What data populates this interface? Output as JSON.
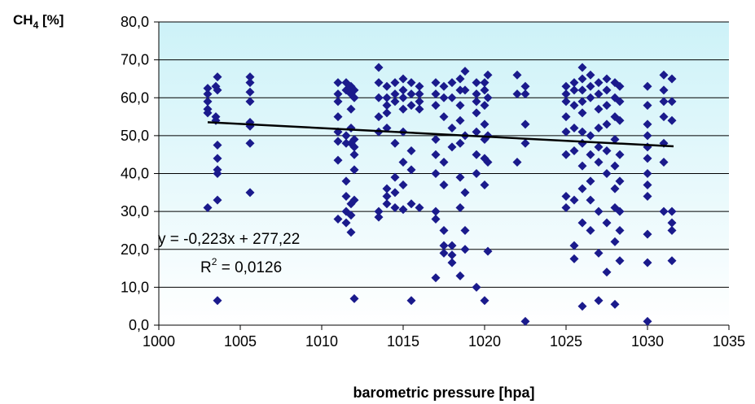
{
  "chart_data": {
    "type": "scatter",
    "ylabel_main": "CH",
    "ylabel_sub": "4",
    "ylabel_rest": " [%]",
    "xlabel": "barometric pressure [hpa]",
    "xlim": [
      1000,
      1035
    ],
    "ylim": [
      0,
      80
    ],
    "x_ticks": [
      1000,
      1005,
      1010,
      1015,
      1020,
      1025,
      1030,
      1035
    ],
    "x_tick_labels": [
      "1000",
      "1005",
      "1010",
      "1015",
      "1020",
      "1025",
      "1030",
      "1035"
    ],
    "y_ticks": [
      0,
      10,
      20,
      30,
      40,
      50,
      60,
      70,
      80
    ],
    "y_tick_labels": [
      "0,0",
      "10,0",
      "20,0",
      "30,0",
      "40,0",
      "50,0",
      "60,0",
      "70,0",
      "80,0"
    ],
    "grid": true,
    "marker_color": "#1a1a8c",
    "trendline": {
      "slope": -0.223,
      "intercept": 277.22,
      "x_range": [
        1003,
        1031.6
      ],
      "equation": "y = -0,223x + 277,22",
      "r2_prefix": "R",
      "r2_sup": "2",
      "r2_value": " = 0,0126",
      "color": "#000000"
    },
    "points": [
      [
        1003,
        62.5
      ],
      [
        1003,
        61
      ],
      [
        1003,
        59
      ],
      [
        1003,
        57
      ],
      [
        1003,
        56
      ],
      [
        1003,
        31
      ],
      [
        1003.5,
        54
      ],
      [
        1003.5,
        55
      ],
      [
        1003.5,
        63
      ],
      [
        1003.6,
        65.5
      ],
      [
        1003.6,
        62
      ],
      [
        1003.6,
        47.5
      ],
      [
        1003.6,
        44
      ],
      [
        1003.6,
        41
      ],
      [
        1003.6,
        40
      ],
      [
        1003.6,
        33
      ],
      [
        1003.6,
        6.5
      ],
      [
        1005.6,
        65.5
      ],
      [
        1005.6,
        64
      ],
      [
        1005.6,
        61.5
      ],
      [
        1005.6,
        59
      ],
      [
        1005.6,
        53.5
      ],
      [
        1005.6,
        52.5
      ],
      [
        1005.6,
        48
      ],
      [
        1005.6,
        35
      ],
      [
        1011,
        64
      ],
      [
        1011,
        61
      ],
      [
        1011,
        59
      ],
      [
        1011,
        55
      ],
      [
        1011,
        51
      ],
      [
        1011,
        48.5
      ],
      [
        1011,
        43.5
      ],
      [
        1011,
        28
      ],
      [
        1011.5,
        64
      ],
      [
        1011.5,
        62
      ],
      [
        1011.5,
        50
      ],
      [
        1011.5,
        48
      ],
      [
        1011.5,
        38
      ],
      [
        1011.5,
        34
      ],
      [
        1011.5,
        30
      ],
      [
        1011.5,
        27
      ],
      [
        1011.8,
        63
      ],
      [
        1011.8,
        61
      ],
      [
        1011.8,
        57
      ],
      [
        1011.8,
        52
      ],
      [
        1011.8,
        48
      ],
      [
        1011.8,
        32
      ],
      [
        1011.8,
        29
      ],
      [
        1011.8,
        24.5
      ],
      [
        1012,
        62
      ],
      [
        1012,
        60
      ],
      [
        1012,
        49
      ],
      [
        1012,
        47
      ],
      [
        1012,
        45
      ],
      [
        1012,
        41
      ],
      [
        1012,
        33
      ],
      [
        1012,
        7
      ],
      [
        1013.5,
        68
      ],
      [
        1013.5,
        64
      ],
      [
        1013.5,
        60
      ],
      [
        1013.5,
        55
      ],
      [
        1013.5,
        51
      ],
      [
        1013.5,
        30
      ],
      [
        1013.5,
        28.5
      ],
      [
        1014,
        63
      ],
      [
        1014,
        60
      ],
      [
        1014,
        58
      ],
      [
        1014,
        56
      ],
      [
        1014,
        52
      ],
      [
        1014,
        36
      ],
      [
        1014,
        34
      ],
      [
        1014,
        32
      ],
      [
        1014.5,
        64
      ],
      [
        1014.5,
        61
      ],
      [
        1014.5,
        59
      ],
      [
        1014.5,
        48
      ],
      [
        1014.5,
        39
      ],
      [
        1014.5,
        35
      ],
      [
        1014.5,
        31
      ],
      [
        1015,
        65
      ],
      [
        1015,
        62
      ],
      [
        1015,
        60
      ],
      [
        1015,
        57
      ],
      [
        1015,
        51
      ],
      [
        1015,
        43
      ],
      [
        1015,
        37
      ],
      [
        1015,
        30.5
      ],
      [
        1015.5,
        64
      ],
      [
        1015.5,
        61
      ],
      [
        1015.5,
        58
      ],
      [
        1015.5,
        46
      ],
      [
        1015.5,
        41
      ],
      [
        1015.5,
        32
      ],
      [
        1015.5,
        6.5
      ],
      [
        1016,
        63
      ],
      [
        1016,
        61
      ],
      [
        1016,
        59
      ],
      [
        1016,
        57
      ],
      [
        1016,
        31
      ],
      [
        1017,
        64
      ],
      [
        1017,
        61
      ],
      [
        1017,
        58
      ],
      [
        1017,
        49
      ],
      [
        1017,
        45
      ],
      [
        1017,
        40
      ],
      [
        1017,
        30
      ],
      [
        1017,
        28
      ],
      [
        1017,
        12.5
      ],
      [
        1017.5,
        63
      ],
      [
        1017.5,
        60
      ],
      [
        1017.5,
        55
      ],
      [
        1017.5,
        43
      ],
      [
        1017.5,
        37
      ],
      [
        1017.5,
        25
      ],
      [
        1017.5,
        21
      ],
      [
        1017.5,
        19
      ],
      [
        1018,
        64
      ],
      [
        1018,
        60
      ],
      [
        1018,
        52
      ],
      [
        1018,
        47
      ],
      [
        1018,
        21
      ],
      [
        1018,
        18.5
      ],
      [
        1018,
        16.5
      ],
      [
        1018.5,
        65
      ],
      [
        1018.5,
        62
      ],
      [
        1018.5,
        58
      ],
      [
        1018.5,
        54
      ],
      [
        1018.5,
        48
      ],
      [
        1018.5,
        39
      ],
      [
        1018.5,
        31
      ],
      [
        1018.5,
        13
      ],
      [
        1018.8,
        67
      ],
      [
        1018.8,
        62
      ],
      [
        1018.8,
        50
      ],
      [
        1018.8,
        35
      ],
      [
        1018.8,
        25
      ],
      [
        1018.8,
        20
      ],
      [
        1019.5,
        64
      ],
      [
        1019.5,
        61
      ],
      [
        1019.5,
        59
      ],
      [
        1019.5,
        56
      ],
      [
        1019.5,
        51
      ],
      [
        1019.5,
        45
      ],
      [
        1019.5,
        40
      ],
      [
        1019.5,
        10
      ],
      [
        1020,
        64
      ],
      [
        1020,
        62
      ],
      [
        1020,
        58
      ],
      [
        1020,
        53
      ],
      [
        1020,
        49
      ],
      [
        1020,
        44
      ],
      [
        1020,
        37
      ],
      [
        1020,
        6.5
      ],
      [
        1020.2,
        66
      ],
      [
        1020.2,
        60
      ],
      [
        1020.2,
        50
      ],
      [
        1020.2,
        43
      ],
      [
        1020.2,
        19.5
      ],
      [
        1022,
        66
      ],
      [
        1022,
        61
      ],
      [
        1022,
        43
      ],
      [
        1022.5,
        63
      ],
      [
        1022.5,
        61
      ],
      [
        1022.5,
        53
      ],
      [
        1022.5,
        48
      ],
      [
        1022.5,
        1
      ],
      [
        1025,
        63
      ],
      [
        1025,
        61
      ],
      [
        1025,
        59
      ],
      [
        1025,
        55
      ],
      [
        1025,
        51
      ],
      [
        1025,
        45
      ],
      [
        1025,
        34
      ],
      [
        1025,
        31
      ],
      [
        1025.5,
        64
      ],
      [
        1025.5,
        62
      ],
      [
        1025.5,
        58
      ],
      [
        1025.5,
        52
      ],
      [
        1025.5,
        46
      ],
      [
        1025.5,
        33
      ],
      [
        1025.5,
        21
      ],
      [
        1025.5,
        17.5
      ],
      [
        1026,
        68
      ],
      [
        1026,
        65
      ],
      [
        1026,
        62
      ],
      [
        1026,
        59
      ],
      [
        1026,
        56
      ],
      [
        1026,
        51
      ],
      [
        1026,
        48
      ],
      [
        1026,
        42
      ],
      [
        1026,
        36
      ],
      [
        1026,
        27
      ],
      [
        1026,
        5
      ],
      [
        1026.5,
        66
      ],
      [
        1026.5,
        63
      ],
      [
        1026.5,
        60
      ],
      [
        1026.5,
        50
      ],
      [
        1026.5,
        45
      ],
      [
        1026.5,
        38
      ],
      [
        1026.5,
        33
      ],
      [
        1026.5,
        25
      ],
      [
        1027,
        64
      ],
      [
        1027,
        61
      ],
      [
        1027,
        57
      ],
      [
        1027,
        52
      ],
      [
        1027,
        47
      ],
      [
        1027,
        43
      ],
      [
        1027,
        30
      ],
      [
        1027,
        19
      ],
      [
        1027,
        6.5
      ],
      [
        1027.5,
        65
      ],
      [
        1027.5,
        62
      ],
      [
        1027.5,
        58
      ],
      [
        1027.5,
        53
      ],
      [
        1027.5,
        46
      ],
      [
        1027.5,
        40
      ],
      [
        1027.5,
        27
      ],
      [
        1027.5,
        14
      ],
      [
        1028,
        64
      ],
      [
        1028,
        60
      ],
      [
        1028,
        55
      ],
      [
        1028,
        49
      ],
      [
        1028,
        42
      ],
      [
        1028,
        36
      ],
      [
        1028,
        31
      ],
      [
        1028,
        22
      ],
      [
        1028,
        5.5
      ],
      [
        1028.3,
        63
      ],
      [
        1028.3,
        59
      ],
      [
        1028.3,
        54
      ],
      [
        1028.3,
        45
      ],
      [
        1028.3,
        38
      ],
      [
        1028.3,
        30
      ],
      [
        1028.3,
        25
      ],
      [
        1028.3,
        17
      ],
      [
        1030,
        63
      ],
      [
        1030,
        58
      ],
      [
        1030,
        53
      ],
      [
        1030,
        50
      ],
      [
        1030,
        47
      ],
      [
        1030,
        44
      ],
      [
        1030,
        40
      ],
      [
        1030,
        37
      ],
      [
        1030,
        34
      ],
      [
        1030,
        24
      ],
      [
        1030,
        16.5
      ],
      [
        1030,
        1
      ],
      [
        1031,
        66
      ],
      [
        1031,
        62
      ],
      [
        1031,
        59
      ],
      [
        1031,
        55
      ],
      [
        1031,
        48
      ],
      [
        1031,
        43
      ],
      [
        1031,
        30
      ],
      [
        1031.5,
        65
      ],
      [
        1031.5,
        59
      ],
      [
        1031.5,
        54
      ],
      [
        1031.5,
        30
      ],
      [
        1031.5,
        27
      ],
      [
        1031.5,
        25
      ],
      [
        1031.5,
        17
      ]
    ]
  }
}
